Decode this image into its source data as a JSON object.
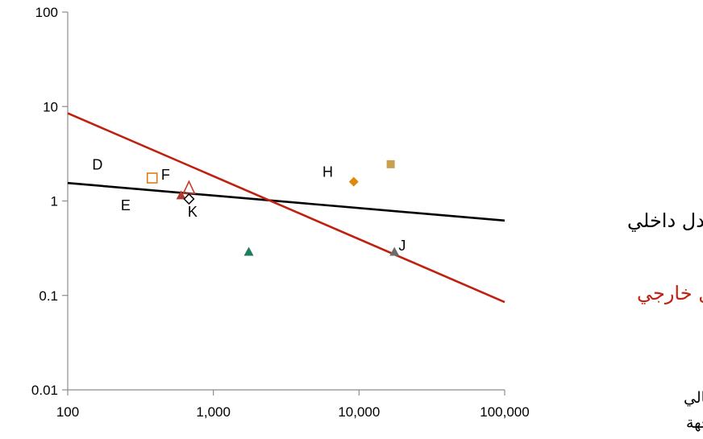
{
  "chart_data": {
    "type": "scatter",
    "title": "",
    "x_scale": "log",
    "y_scale": "log",
    "xlim": [
      100,
      100000
    ],
    "ylim": [
      0.01,
      100
    ],
    "x_ticks": [
      100,
      1000,
      10000,
      100000
    ],
    "x_tick_labels": [
      "100",
      "1,000",
      "10,000",
      "100,000"
    ],
    "y_ticks": [
      0.01,
      0.1,
      1,
      10,
      100
    ],
    "y_tick_labels": [
      "0.01",
      "0.1",
      "1",
      "10",
      "100"
    ],
    "xlabel_lines": [
      "العدد الاجمالي",
      "لموظفين الجهة"
    ],
    "grid": false,
    "points": [
      {
        "x": 380,
        "y": 1.75,
        "marker": "square-open",
        "color": "#e07b1a"
      },
      {
        "x": 600,
        "y": 1.15,
        "marker": "triangle-filled",
        "color": "#b03a2e"
      },
      {
        "x": 680,
        "y": 1.35,
        "marker": "triangle-open",
        "color": "#c0392b"
      },
      {
        "x": 680,
        "y": 1.05,
        "marker": "diamond-open",
        "color": "#000000"
      },
      {
        "x": 1750,
        "y": 0.29,
        "marker": "triangle-filled",
        "color": "#1e7d5a"
      },
      {
        "x": 9200,
        "y": 1.6,
        "marker": "diamond-filled",
        "color": "#e0870f"
      },
      {
        "x": 16500,
        "y": 2.45,
        "marker": "square-filled",
        "color": "#c9a04e"
      },
      {
        "x": 17500,
        "y": 0.29,
        "marker": "triangle-filled",
        "color": "#6d6d6d"
      }
    ],
    "point_labels": [
      {
        "text": "D",
        "x": 160,
        "y": 2.15
      },
      {
        "text": "F",
        "x": 470,
        "y": 1.68
      },
      {
        "text": "E",
        "x": 250,
        "y": 0.8
      },
      {
        "text": "K",
        "x": 720,
        "y": 0.68
      },
      {
        "text": "H",
        "x": 6100,
        "y": 1.8
      },
      {
        "text": "J",
        "x": 19800,
        "y": 0.3
      }
    ],
    "series": [
      {
        "name": "معدل داخلي",
        "type": "line",
        "x": [
          100,
          100000
        ],
        "y": [
          1.55,
          0.62
        ],
        "color": "#000000"
      },
      {
        "name": "معدل خارجي",
        "type": "line",
        "x": [
          100,
          100000
        ],
        "y": [
          8.5,
          0.085
        ],
        "color": "#c0210f"
      }
    ]
  }
}
